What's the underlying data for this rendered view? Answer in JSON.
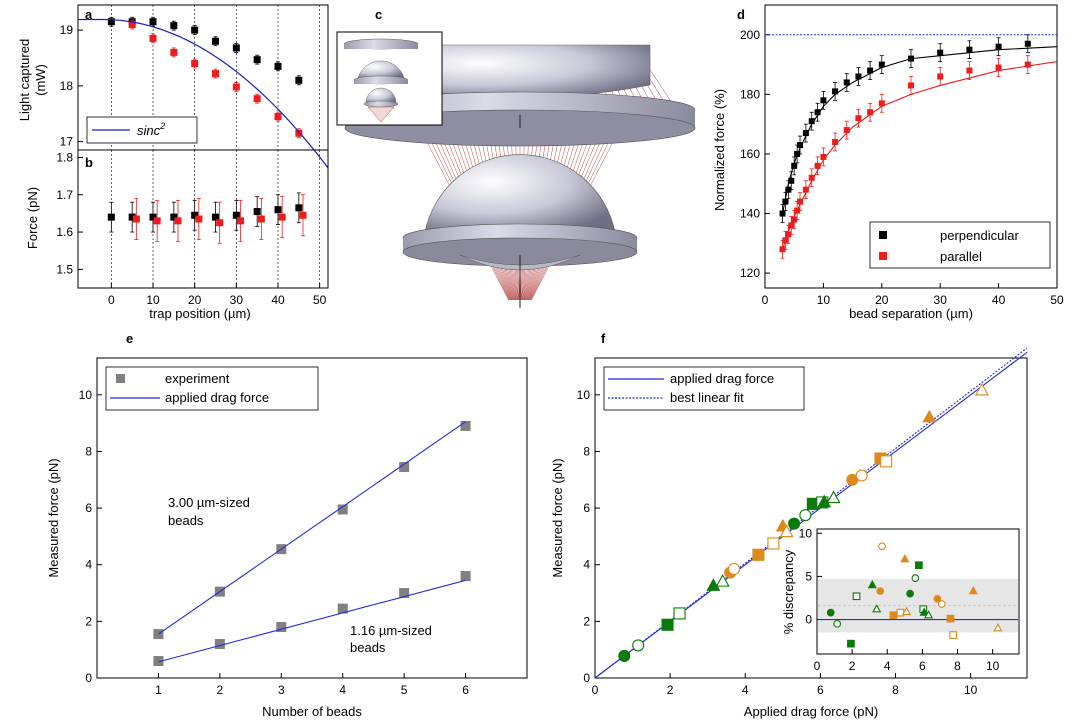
{
  "chart_data": [
    {
      "panel": "a",
      "type": "scatter",
      "ylabel": "Light captured (mW)",
      "xlim": [
        -8,
        52
      ],
      "ylim": [
        16.85,
        19.45
      ],
      "yticks": [
        17,
        18,
        19
      ],
      "xticks": [
        0,
        10,
        20,
        30,
        40,
        50
      ],
      "vlines": [
        0,
        10,
        20,
        30,
        40,
        50
      ],
      "legend": {
        "entries": [
          "sinc"
        ],
        "superscript": "2",
        "placement": "bottom-left"
      },
      "series": [
        {
          "name": "perpendicular",
          "color": "#000000",
          "x": [
            0,
            5,
            10,
            15,
            20,
            25,
            30,
            35,
            40,
            45
          ],
          "y": [
            19.15,
            19.15,
            19.15,
            19.08,
            19.0,
            18.8,
            18.68,
            18.47,
            18.35,
            18.1
          ],
          "err": 0.08
        },
        {
          "name": "parallel",
          "color": "#ee1c1c",
          "x": [
            5,
            10,
            15,
            20,
            25,
            30,
            35,
            40,
            45
          ],
          "y": [
            19.1,
            18.85,
            18.6,
            18.4,
            18.22,
            17.98,
            17.77,
            17.45,
            17.15
          ],
          "err": 0.08
        },
        {
          "name": "sinc2",
          "color": "#1a1acc",
          "x": [
            -8,
            0,
            10,
            20,
            30,
            40,
            52
          ],
          "y": [
            19.19,
            19.19,
            19.06,
            18.71,
            18.13,
            17.42,
            16.92
          ]
        }
      ]
    },
    {
      "panel": "b",
      "type": "scatter",
      "xlabel": "trap position (µm)",
      "ylabel": "Force (pN)",
      "xlim": [
        -8,
        52
      ],
      "ylim": [
        1.45,
        1.82
      ],
      "yticks": [
        1.5,
        1.6,
        1.7,
        1.8
      ],
      "xticks": [
        0,
        10,
        20,
        30,
        40,
        50
      ],
      "xticklabels": [
        "0",
        "10",
        "20",
        "30",
        "40",
        "50"
      ],
      "vlines": [
        0,
        10,
        20,
        30,
        40,
        50
      ],
      "series": [
        {
          "name": "perpendicular",
          "color": "#000000",
          "x": [
            0,
            5,
            10,
            15,
            20,
            25,
            30,
            35,
            40,
            45
          ],
          "y": [
            1.64,
            1.64,
            1.64,
            1.64,
            1.645,
            1.64,
            1.645,
            1.655,
            1.66,
            1.665
          ],
          "err": 0.04
        },
        {
          "name": "parallel",
          "color": "#ee1c1c",
          "x": [
            5,
            10,
            15,
            20,
            25,
            30,
            35,
            40,
            45
          ],
          "y": [
            1.635,
            1.63,
            1.63,
            1.635,
            1.625,
            1.63,
            1.635,
            1.64,
            1.645
          ],
          "err": 0.055
        }
      ]
    },
    {
      "panel": "d",
      "type": "scatter",
      "xlabel": "bead separation (µm)",
      "ylabel": "Normalized force (%)",
      "xlim": [
        0,
        50
      ],
      "ylim": [
        115,
        210
      ],
      "xticks": [
        0,
        10,
        20,
        30,
        40,
        50
      ],
      "yticks": [
        120,
        140,
        160,
        180,
        200
      ],
      "hline": 200,
      "legend": {
        "entries": [
          "perpendicular",
          "parallel"
        ],
        "placement": "bottom-right"
      },
      "series": [
        {
          "name": "perpendicular",
          "color": "#000000",
          "x": [
            3,
            3.5,
            4,
            4.5,
            5,
            5.5,
            6,
            7,
            8,
            9,
            10,
            12,
            14,
            16,
            18,
            20,
            25,
            30,
            35,
            40,
            45
          ],
          "y": [
            140,
            144,
            148,
            151,
            156,
            160,
            163,
            167,
            171,
            174,
            178,
            181,
            184,
            186,
            188,
            190,
            192,
            194,
            195,
            196,
            197
          ],
          "err": 3
        },
        {
          "name": "parallel",
          "color": "#ee1c1c",
          "x": [
            3,
            3.5,
            4,
            4.5,
            5,
            5.5,
            6,
            7,
            8,
            9,
            10,
            12,
            14,
            16,
            18,
            20,
            25,
            30,
            35,
            40,
            45
          ],
          "y": [
            128,
            131,
            133,
            136,
            138,
            141,
            144,
            148,
            152,
            156,
            159,
            164,
            168,
            172,
            174,
            177,
            183,
            186,
            188,
            189,
            190
          ],
          "err": 3
        },
        {
          "name": "perpendicular fit",
          "color": "#000000",
          "x": [
            3,
            4,
            5,
            6,
            8,
            10,
            12,
            15,
            20,
            25,
            30,
            40,
            50
          ],
          "y": [
            140,
            150,
            157,
            162,
            170,
            176,
            180,
            184,
            189,
            192,
            193,
            195,
            196
          ]
        },
        {
          "name": "parallel fit",
          "color": "#ee1c1c",
          "x": [
            3,
            4,
            5,
            6,
            8,
            10,
            12,
            15,
            20,
            25,
            30,
            40,
            50
          ],
          "y": [
            128,
            134,
            139,
            143,
            151,
            158,
            163,
            169,
            176,
            180,
            183,
            188,
            191
          ]
        }
      ]
    },
    {
      "panel": "e",
      "type": "scatter",
      "xlabel": "Number of beads",
      "ylabel": "Measured force (pN)",
      "xlim": [
        0,
        7
      ],
      "ylim": [
        0,
        11.3
      ],
      "xticks": [
        1,
        2,
        3,
        4,
        5,
        6
      ],
      "yticks": [
        0,
        2,
        4,
        6,
        8,
        10
      ],
      "legend": {
        "entries": [
          "experiment",
          "applied drag force"
        ],
        "placement": "top-left"
      },
      "annotations": [
        {
          "text": [
            "3.00 µm-sized",
            "beads"
          ]
        },
        {
          "text": [
            "1.16 µm-sized",
            "beads"
          ]
        }
      ],
      "series": [
        {
          "name": "experiment",
          "color": "#808080",
          "x": [
            1,
            2,
            3,
            4,
            5,
            6
          ],
          "y": [
            1.55,
            3.05,
            4.55,
            5.95,
            7.45,
            8.9
          ]
        },
        {
          "name": "experiment",
          "color": "#808080",
          "x": [
            1,
            2,
            3,
            4,
            5,
            6
          ],
          "y": [
            0.6,
            1.2,
            1.8,
            2.45,
            3.0,
            3.6
          ]
        },
        {
          "name": "applied drag force",
          "color": "#2828e0",
          "x": [
            1,
            6
          ],
          "y": [
            1.55,
            9.05
          ]
        },
        {
          "name": "applied drag force",
          "color": "#2828e0",
          "x": [
            1,
            6
          ],
          "y": [
            0.57,
            3.45
          ]
        }
      ]
    },
    {
      "panel": "f",
      "type": "scatter",
      "xlabel": "Applied drag force (pN)",
      "ylabel": "Measured force (pN)",
      "xlim": [
        0,
        11.5
      ],
      "ylim": [
        0,
        11.3
      ],
      "xticks": [
        0,
        2,
        4,
        6,
        8,
        10
      ],
      "yticks": [
        0,
        2,
        4,
        6,
        8,
        10
      ],
      "legend": {
        "entries": [
          "applied drag force",
          "best linear fit"
        ],
        "placement": "top-left"
      },
      "series": [
        {
          "name": "applied drag force",
          "color": "#2828e0",
          "x": [
            0,
            11.5
          ],
          "y": [
            0,
            11.5
          ]
        },
        {
          "name": "best linear fit",
          "color": "#2828e0",
          "x": [
            0,
            11.5
          ],
          "y": [
            0,
            11.65
          ]
        },
        {
          "name": "green",
          "color": "#0a7a0a",
          "points": [
            [
              0.78,
              0.78,
              "circle",
              1
            ],
            [
              1.15,
              1.15,
              "circle",
              0
            ],
            [
              1.93,
              1.88,
              "square",
              1
            ],
            [
              2.25,
              2.28,
              "square",
              0
            ],
            [
              3.15,
              3.25,
              "triangle",
              1
            ],
            [
              3.4,
              3.4,
              "triangle",
              0
            ],
            [
              5.3,
              5.45,
              "circle",
              1
            ],
            [
              5.6,
              5.75,
              "circle",
              0
            ],
            [
              5.8,
              6.15,
              "square",
              1
            ],
            [
              6.05,
              6.2,
              "square",
              0
            ],
            [
              6.1,
              6.2,
              "triangle",
              1
            ],
            [
              6.35,
              6.35,
              "triangle",
              0
            ]
          ]
        },
        {
          "name": "orange",
          "color": "#dd8a1a",
          "points": [
            [
              3.6,
              3.72,
              "circle",
              1
            ],
            [
              3.7,
              3.85,
              "circle",
              0
            ],
            [
              4.35,
              4.35,
              "square",
              1
            ],
            [
              4.75,
              4.75,
              "square",
              0
            ],
            [
              5.0,
              5.35,
              "triangle",
              1
            ],
            [
              5.1,
              5.15,
              "triangle",
              0
            ],
            [
              6.85,
              7.0,
              "circle",
              1
            ],
            [
              7.1,
              7.15,
              "circle",
              0
            ],
            [
              7.6,
              7.75,
              "square",
              1
            ],
            [
              7.75,
              7.65,
              "square",
              0
            ],
            [
              8.9,
              9.2,
              "triangle",
              1
            ],
            [
              10.3,
              10.15,
              "triangle",
              0
            ]
          ]
        }
      ]
    },
    {
      "panel": "f-inset",
      "type": "scatter",
      "ylabel": "% discrepancy",
      "xlim": [
        0,
        11.5
      ],
      "ylim": [
        -4,
        10.5
      ],
      "xticks": [
        0,
        2,
        4,
        6,
        8,
        10
      ],
      "yticks": [
        0,
        5,
        10
      ],
      "band": [
        -1.5,
        4.7
      ],
      "hline": 0,
      "series": [
        {
          "name": "green",
          "color": "#0a7a0a",
          "points": [
            [
              0.78,
              0.8,
              "circle",
              1
            ],
            [
              1.15,
              -0.5,
              "circle",
              0
            ],
            [
              1.93,
              -2.8,
              "square",
              1
            ],
            [
              2.25,
              2.7,
              "square",
              0
            ],
            [
              3.15,
              4.0,
              "triangle",
              1
            ],
            [
              3.4,
              1.2,
              "triangle",
              0
            ],
            [
              5.3,
              3.0,
              "circle",
              1
            ],
            [
              5.6,
              4.8,
              "circle",
              0
            ],
            [
              5.8,
              6.3,
              "square",
              1
            ],
            [
              6.05,
              1.2,
              "square",
              0
            ],
            [
              6.1,
              0.8,
              "triangle",
              1
            ],
            [
              6.35,
              0.5,
              "triangle",
              0
            ]
          ]
        },
        {
          "name": "orange",
          "color": "#dd8a1a",
          "points": [
            [
              3.6,
              3.3,
              "circle",
              1
            ],
            [
              3.7,
              8.5,
              "circle",
              0
            ],
            [
              4.35,
              0.5,
              "square",
              1
            ],
            [
              4.75,
              0.8,
              "square",
              0
            ],
            [
              5.0,
              7.0,
              "triangle",
              1
            ],
            [
              5.1,
              0.9,
              "triangle",
              0
            ],
            [
              6.85,
              2.4,
              "circle",
              1
            ],
            [
              7.1,
              1.8,
              "circle",
              0
            ],
            [
              7.6,
              0.1,
              "square",
              1
            ],
            [
              7.75,
              -1.8,
              "square",
              0
            ],
            [
              8.9,
              3.3,
              "triangle",
              1
            ],
            [
              10.3,
              -1.0,
              "triangle",
              0
            ]
          ]
        }
      ]
    }
  ],
  "panels": {
    "a": "a",
    "b": "b",
    "c": "c",
    "d": "d",
    "e": "e",
    "f": "f"
  },
  "text": {
    "a_ylabel_1": "Light captured",
    "a_ylabel_2": "(mW)",
    "a_legend": "sinc",
    "a_legend_sup": "2",
    "b_ylabel": "Force (pN)",
    "b_xlabel": "trap position (µm)",
    "d_ylabel": "Normalized force (%)",
    "d_xlabel": "bead separation (µm)",
    "d_legend_1": "perpendicular",
    "d_legend_2": "parallel",
    "e_ylabel": "Measured force (pN)",
    "e_xlabel": "Number of beads",
    "e_legend_1": "experiment",
    "e_legend_2": "applied drag force",
    "e_ann1_1": "3.00 µm-sized",
    "e_ann1_2": "beads",
    "e_ann2_1": "1.16 µm-sized",
    "e_ann2_2": "beads",
    "f_ylabel": "Measured force (pN)",
    "f_xlabel": "Applied drag force (pN)",
    "f_legend_1": "applied drag force",
    "f_legend_2": "best linear fit",
    "inset_ylabel": "% discrepancy"
  }
}
